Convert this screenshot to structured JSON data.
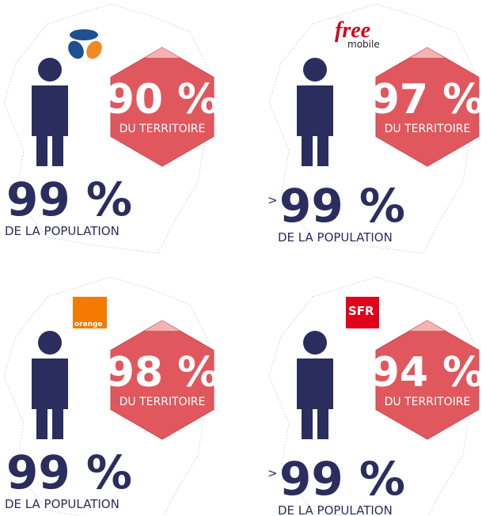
{
  "panels": [
    {
      "territory": "90 %",
      "territory_label": "DU TERRITOIRE",
      "population": "99 %",
      "population_label": "DE LA POPULATION"
    },
    {
      "logo": [
        "free",
        "mobile"
      ],
      "territory": "97 %",
      "territory_label": "DU TERRITOIRE",
      "prefix": ">",
      "population": "99 %",
      "population_label": "DE LA POPULATION"
    },
    {
      "logo": [
        "orange"
      ],
      "territory": "98 %",
      "territory_label": "DU TERRITOIRE",
      "population": "99 %",
      "population_label": "DE LA POPULATION"
    },
    {
      "logo": [
        "SFR"
      ],
      "territory": "94 %",
      "territory_label": "DU TERRITOIRE",
      "prefix": ">",
      "population": "99 %",
      "population_label": "DE LA POPULATION"
    }
  ]
}
